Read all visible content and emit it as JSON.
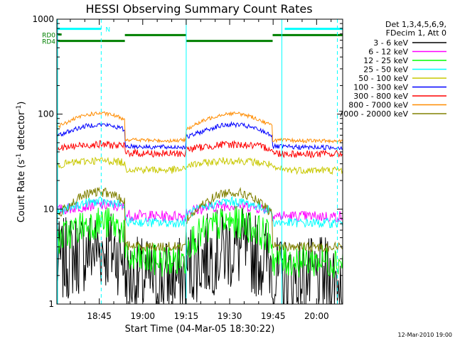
{
  "chart_data": {
    "type": "line",
    "title": "HESSI Observing Summary Count Rates",
    "ylabel_main": "Count Rate (s",
    "ylabel_sup1": "-1",
    "ylabel_mid": " detector",
    "ylabel_sup2": "-1",
    "ylabel_end": ")",
    "xlabel": "Start Time (04-Mar-05 18:30:22)",
    "footer": "12-Mar-2010 19:00",
    "y_scale": "log",
    "ylim": [
      1,
      1000
    ],
    "xlim": [
      "18:30:22",
      "20:09:00"
    ],
    "x_ticks": [
      "18:45",
      "19:00",
      "19:15",
      "19:30",
      "19:45",
      "20:00"
    ],
    "y_ticks": [
      "1",
      "10",
      "100",
      "1000"
    ],
    "legend_header": [
      "Det 1,3,4,5,6,9,",
      "FDecim 1, Att 0"
    ],
    "legend_placement": "right",
    "series": [
      {
        "name": "3 - 6 keV",
        "color": "#000000",
        "baseline": 1.9,
        "amp": 2.0,
        "noise": 0.45
      },
      {
        "name": "6 - 12 keV",
        "color": "#ff00ff",
        "baseline": 8.8,
        "amp": 1.25,
        "noise": 0.06
      },
      {
        "name": "12 - 25 keV",
        "color": "#00ff00",
        "baseline": 3.0,
        "amp": 2.4,
        "noise": 0.18
      },
      {
        "name": "25 - 50 keV",
        "color": "#00ffff",
        "baseline": 7.5,
        "amp": 1.6,
        "noise": 0.05
      },
      {
        "name": "50 - 100 keV",
        "color": "#c8c800",
        "baseline": 27,
        "amp": 1.2,
        "noise": 0.04
      },
      {
        "name": "100 - 300 keV",
        "color": "#0000ff",
        "baseline": 47,
        "amp": 1.65,
        "noise": 0.025
      },
      {
        "name": "300 - 800 keV",
        "color": "#ff0000",
        "baseline": 40,
        "amp": 1.2,
        "noise": 0.04
      },
      {
        "name": "800 - 7000 keV",
        "color": "#ff8c00",
        "baseline": 55,
        "amp": 1.85,
        "noise": 0.02
      },
      {
        "name": "7000 - 20000 keV",
        "color": "#808000",
        "baseline": 4.2,
        "amp": 3.6,
        "noise": 0.05
      }
    ],
    "flags": [
      {
        "name": "N",
        "color": "#00ffff",
        "level": 790,
        "segments": [
          [
            "18:30:22",
            "18:45:40"
          ],
          [
            "19:49:00",
            "20:09:00"
          ]
        ]
      },
      {
        "name": "RD0",
        "color": "#008000",
        "level": 690,
        "segments": [
          [
            "18:30:22",
            "18:32:00"
          ]
        ]
      },
      {
        "name": "RD4",
        "color": "#008000",
        "level": 590,
        "segments": [
          [
            "18:30:22",
            "18:53:50"
          ],
          [
            "19:15:00",
            "19:44:50"
          ]
        ]
      },
      {
        "name": "",
        "color": "#008000",
        "level": 680,
        "segments": [
          [
            "18:53:50",
            "19:15:00"
          ],
          [
            "19:44:50",
            "20:09:00"
          ]
        ]
      }
    ],
    "night_intervals": [
      [
        "18:53:50",
        "19:15:00"
      ],
      [
        "19:44:50",
        "20:09:00"
      ]
    ],
    "saa_markers": {
      "solid": [
        "19:15:00",
        "19:48:00"
      ],
      "dashed": [
        "18:45:40",
        "20:07:10"
      ]
    },
    "orbit_peaks": [
      "18:45:00",
      "19:31:00"
    ]
  }
}
